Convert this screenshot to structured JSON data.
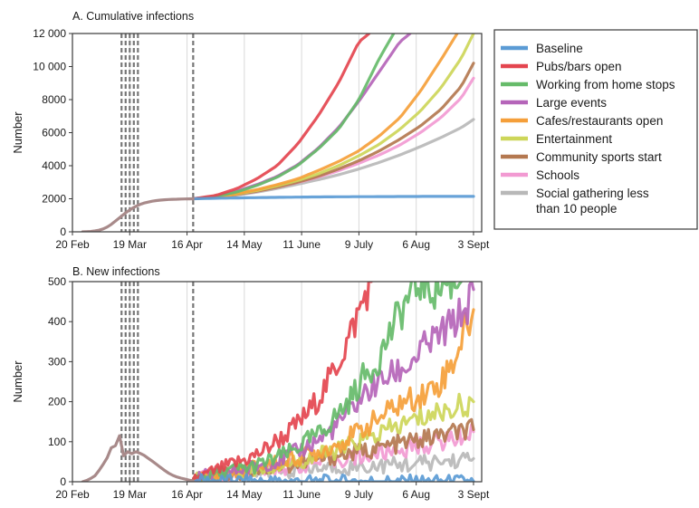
{
  "chart_data": [
    {
      "type": "line",
      "title": "A. Cumulative infections",
      "ylabel": "Number",
      "xlabel": "",
      "x_tick_labels": [
        "20 Feb",
        "19 Mar",
        "16 Apr",
        "14 May",
        "11 June",
        "9 July",
        "6 Aug",
        "3 Sept"
      ],
      "x_tick_days": [
        0,
        28,
        56,
        84,
        112,
        140,
        168,
        196
      ],
      "y_ticks": [
        0,
        2000,
        4000,
        6000,
        8000,
        10000,
        12000
      ],
      "y_tick_labels": [
        "0",
        "2000",
        "4000",
        "6000",
        "8000",
        "10 000",
        "12 000"
      ],
      "ylim": [
        0,
        12000
      ],
      "xlim_days": [
        0,
        200
      ],
      "grid": "vertical",
      "intervention_day_markers": [
        24,
        26,
        28,
        30,
        32,
        59
      ],
      "legend_position": "right",
      "common_prefix": {
        "days": [
          5,
          10,
          14,
          18,
          22,
          24,
          26,
          28,
          30,
          32,
          35,
          38,
          41,
          44,
          47,
          50,
          53,
          56,
          59
        ],
        "values": [
          0,
          30,
          120,
          350,
          750,
          950,
          1150,
          1330,
          1480,
          1610,
          1740,
          1830,
          1890,
          1930,
          1955,
          1970,
          1985,
          1995,
          2000
        ]
      },
      "series": [
        {
          "name": "Baseline",
          "color": "#5b9bd5",
          "days": [
            59,
            70,
            90,
            110,
            130,
            150,
            170,
            190,
            196
          ],
          "values": [
            2000,
            2030,
            2070,
            2100,
            2120,
            2130,
            2140,
            2140,
            2140
          ]
        },
        {
          "name": "Pubs/bars open",
          "color": "#e4454f",
          "days": [
            59,
            70,
            80,
            90,
            100,
            110,
            120,
            130,
            140,
            145
          ],
          "values": [
            2000,
            2200,
            2600,
            3200,
            4000,
            5300,
            7000,
            9000,
            11500,
            12000
          ]
        },
        {
          "name": "Working from home stops",
          "color": "#66bb6a",
          "days": [
            59,
            70,
            80,
            90,
            100,
            110,
            120,
            130,
            140,
            150,
            157
          ],
          "values": [
            2000,
            2150,
            2400,
            2800,
            3300,
            4000,
            5000,
            6200,
            8000,
            10500,
            12000
          ]
        },
        {
          "name": "Large events",
          "color": "#b565b9",
          "days": [
            59,
            70,
            80,
            90,
            100,
            110,
            120,
            130,
            140,
            150,
            160,
            165
          ],
          "values": [
            2000,
            2150,
            2450,
            2850,
            3350,
            4050,
            5050,
            6300,
            7900,
            9700,
            11500,
            12000
          ]
        },
        {
          "name": "Cafes/restaurants open",
          "color": "#f59f3a",
          "days": [
            59,
            70,
            80,
            90,
            100,
            110,
            120,
            130,
            140,
            150,
            160,
            170,
            180,
            188
          ],
          "values": [
            2000,
            2120,
            2300,
            2550,
            2850,
            3200,
            3700,
            4250,
            4900,
            5800,
            6900,
            8500,
            10400,
            12000
          ]
        },
        {
          "name": "Entertainment",
          "color": "#cdd659",
          "days": [
            59,
            70,
            80,
            90,
            100,
            110,
            120,
            130,
            140,
            150,
            160,
            170,
            180,
            190,
            196
          ],
          "values": [
            2000,
            2100,
            2280,
            2500,
            2780,
            3100,
            3500,
            4000,
            4600,
            5300,
            6200,
            7300,
            8700,
            10500,
            12000
          ]
        },
        {
          "name": "Community sports start",
          "color": "#b47850",
          "days": [
            59,
            70,
            80,
            90,
            100,
            110,
            120,
            130,
            140,
            150,
            160,
            170,
            180,
            190,
            196
          ],
          "values": [
            2000,
            2100,
            2250,
            2450,
            2700,
            3000,
            3350,
            3800,
            4300,
            4900,
            5600,
            6400,
            7400,
            8800,
            10200
          ]
        },
        {
          "name": "Schools",
          "color": "#f29ad2",
          "days": [
            59,
            70,
            80,
            90,
            100,
            110,
            120,
            130,
            140,
            150,
            160,
            170,
            180,
            190,
            196
          ],
          "values": [
            2000,
            2100,
            2250,
            2450,
            2700,
            2980,
            3300,
            3700,
            4150,
            4650,
            5250,
            6000,
            6900,
            8100,
            9300
          ]
        },
        {
          "name": "Social gathering less than 10 people",
          "color": "#b8b8b8",
          "days": [
            59,
            70,
            80,
            90,
            100,
            110,
            120,
            130,
            140,
            150,
            160,
            170,
            180,
            190,
            196
          ],
          "values": [
            2000,
            2090,
            2220,
            2400,
            2620,
            2880,
            3150,
            3450,
            3800,
            4200,
            4650,
            5150,
            5700,
            6300,
            6800
          ]
        }
      ]
    },
    {
      "type": "line",
      "title": "B. New infections",
      "ylabel": "Number",
      "xlabel": "",
      "x_tick_labels": [
        "20 Feb",
        "19 Mar",
        "16 Apr",
        "14 May",
        "11 June",
        "9 July",
        "6 Aug",
        "3 Sept"
      ],
      "x_tick_days": [
        0,
        28,
        56,
        84,
        112,
        140,
        168,
        196
      ],
      "y_ticks": [
        0,
        100,
        200,
        300,
        400,
        500
      ],
      "y_tick_labels": [
        "0",
        "100",
        "200",
        "300",
        "400",
        "500"
      ],
      "ylim": [
        0,
        500
      ],
      "xlim_days": [
        0,
        200
      ],
      "grid": "vertical",
      "intervention_day_markers": [
        24,
        26,
        28,
        30,
        32,
        59
      ],
      "common_prefix": {
        "days": [
          5,
          8,
          11,
          14,
          17,
          19,
          21,
          23,
          24,
          25,
          26,
          27,
          28,
          29,
          30,
          31,
          32,
          34,
          36,
          38,
          40,
          42,
          44,
          46,
          48,
          50,
          52,
          54,
          56,
          58,
          59
        ],
        "values": [
          0,
          5,
          15,
          35,
          60,
          85,
          90,
          115,
          130,
          65,
          80,
          75,
          100,
          70,
          85,
          75,
          72,
          70,
          62,
          55,
          48,
          40,
          32,
          25,
          18,
          14,
          10,
          8,
          5,
          3,
          2
        ]
      },
      "series": [
        {
          "name": "Baseline",
          "color": "#5b9bd5",
          "days": [
            59,
            80,
            100,
            120,
            140,
            160,
            180,
            196
          ],
          "values": [
            2,
            2,
            1,
            1,
            1,
            1,
            1,
            1
          ]
        },
        {
          "name": "Pubs/bars open",
          "color": "#e4454f",
          "days": [
            59,
            64,
            69,
            74,
            79,
            84,
            89,
            94,
            99,
            104,
            109,
            114,
            119,
            124,
            129,
            134,
            139,
            144,
            146
          ],
          "values": [
            5,
            15,
            25,
            35,
            45,
            55,
            65,
            80,
            100,
            115,
            140,
            165,
            200,
            240,
            290,
            345,
            410,
            480,
            500
          ]
        },
        {
          "name": "Working from home stops",
          "color": "#66bb6a",
          "days": [
            59,
            65,
            72,
            79,
            86,
            93,
            100,
            107,
            114,
            121,
            128,
            135,
            142,
            149,
            156,
            163,
            170,
            177,
            184,
            190
          ],
          "values": [
            5,
            15,
            22,
            30,
            35,
            45,
            60,
            75,
            100,
            120,
            160,
            200,
            260,
            300,
            380,
            450,
            500,
            480,
            500,
            500
          ]
        },
        {
          "name": "Large events",
          "color": "#b565b9",
          "days": [
            59,
            66,
            73,
            80,
            87,
            94,
            101,
            108,
            115,
            122,
            129,
            136,
            143,
            150,
            157,
            164,
            171,
            178,
            185,
            192,
            196
          ],
          "values": [
            5,
            15,
            22,
            28,
            35,
            45,
            55,
            70,
            90,
            110,
            140,
            180,
            220,
            250,
            270,
            290,
            330,
            360,
            390,
            430,
            480
          ]
        },
        {
          "name": "Cafes/restaurants open",
          "color": "#f59f3a",
          "days": [
            59,
            70,
            80,
            90,
            100,
            110,
            120,
            130,
            140,
            150,
            160,
            170,
            180,
            186,
            192,
            196
          ],
          "values": [
            5,
            18,
            28,
            38,
            48,
            60,
            75,
            95,
            125,
            160,
            195,
            215,
            250,
            300,
            380,
            430
          ]
        },
        {
          "name": "Entertainment",
          "color": "#cdd659",
          "days": [
            59,
            70,
            80,
            90,
            100,
            110,
            120,
            130,
            140,
            150,
            160,
            170,
            180,
            190,
            196
          ],
          "values": [
            5,
            15,
            25,
            32,
            40,
            50,
            65,
            80,
            100,
            120,
            140,
            160,
            175,
            190,
            200
          ]
        },
        {
          "name": "Community sports start",
          "color": "#b47850",
          "days": [
            59,
            70,
            80,
            90,
            100,
            110,
            120,
            130,
            140,
            150,
            160,
            170,
            180,
            190,
            196
          ],
          "values": [
            5,
            14,
            22,
            30,
            36,
            44,
            55,
            65,
            75,
            85,
            95,
            105,
            115,
            125,
            130
          ]
        },
        {
          "name": "Schools",
          "color": "#f29ad2",
          "days": [
            59,
            70,
            80,
            90,
            100,
            110,
            120,
            130,
            140,
            150,
            160,
            170,
            180,
            190,
            196
          ],
          "values": [
            5,
            14,
            22,
            28,
            34,
            40,
            48,
            55,
            62,
            70,
            80,
            90,
            100,
            115,
            125
          ]
        },
        {
          "name": "Social gathering less than 10 people",
          "color": "#b8b8b8",
          "days": [
            59,
            70,
            80,
            90,
            100,
            110,
            120,
            130,
            140,
            150,
            160,
            170,
            180,
            190,
            196
          ],
          "values": [
            5,
            12,
            18,
            22,
            26,
            30,
            33,
            36,
            38,
            40,
            43,
            46,
            50,
            55,
            58
          ]
        }
      ]
    }
  ],
  "legend": {
    "items": [
      {
        "lines": [
          "Baseline"
        ],
        "color": "#5b9bd5"
      },
      {
        "lines": [
          "Pubs/bars open"
        ],
        "color": "#e4454f"
      },
      {
        "lines": [
          "Working from home stops"
        ],
        "color": "#66bb6a"
      },
      {
        "lines": [
          "Large events"
        ],
        "color": "#b565b9"
      },
      {
        "lines": [
          "Cafes/restaurants open"
        ],
        "color": "#f59f3a"
      },
      {
        "lines": [
          "Entertainment"
        ],
        "color": "#cdd659"
      },
      {
        "lines": [
          "Community sports start"
        ],
        "color": "#b47850"
      },
      {
        "lines": [
          "Schools"
        ],
        "color": "#f29ad2"
      },
      {
        "lines": [
          "Social gathering less",
          "than 10 people"
        ],
        "color": "#b8b8b8"
      }
    ]
  }
}
